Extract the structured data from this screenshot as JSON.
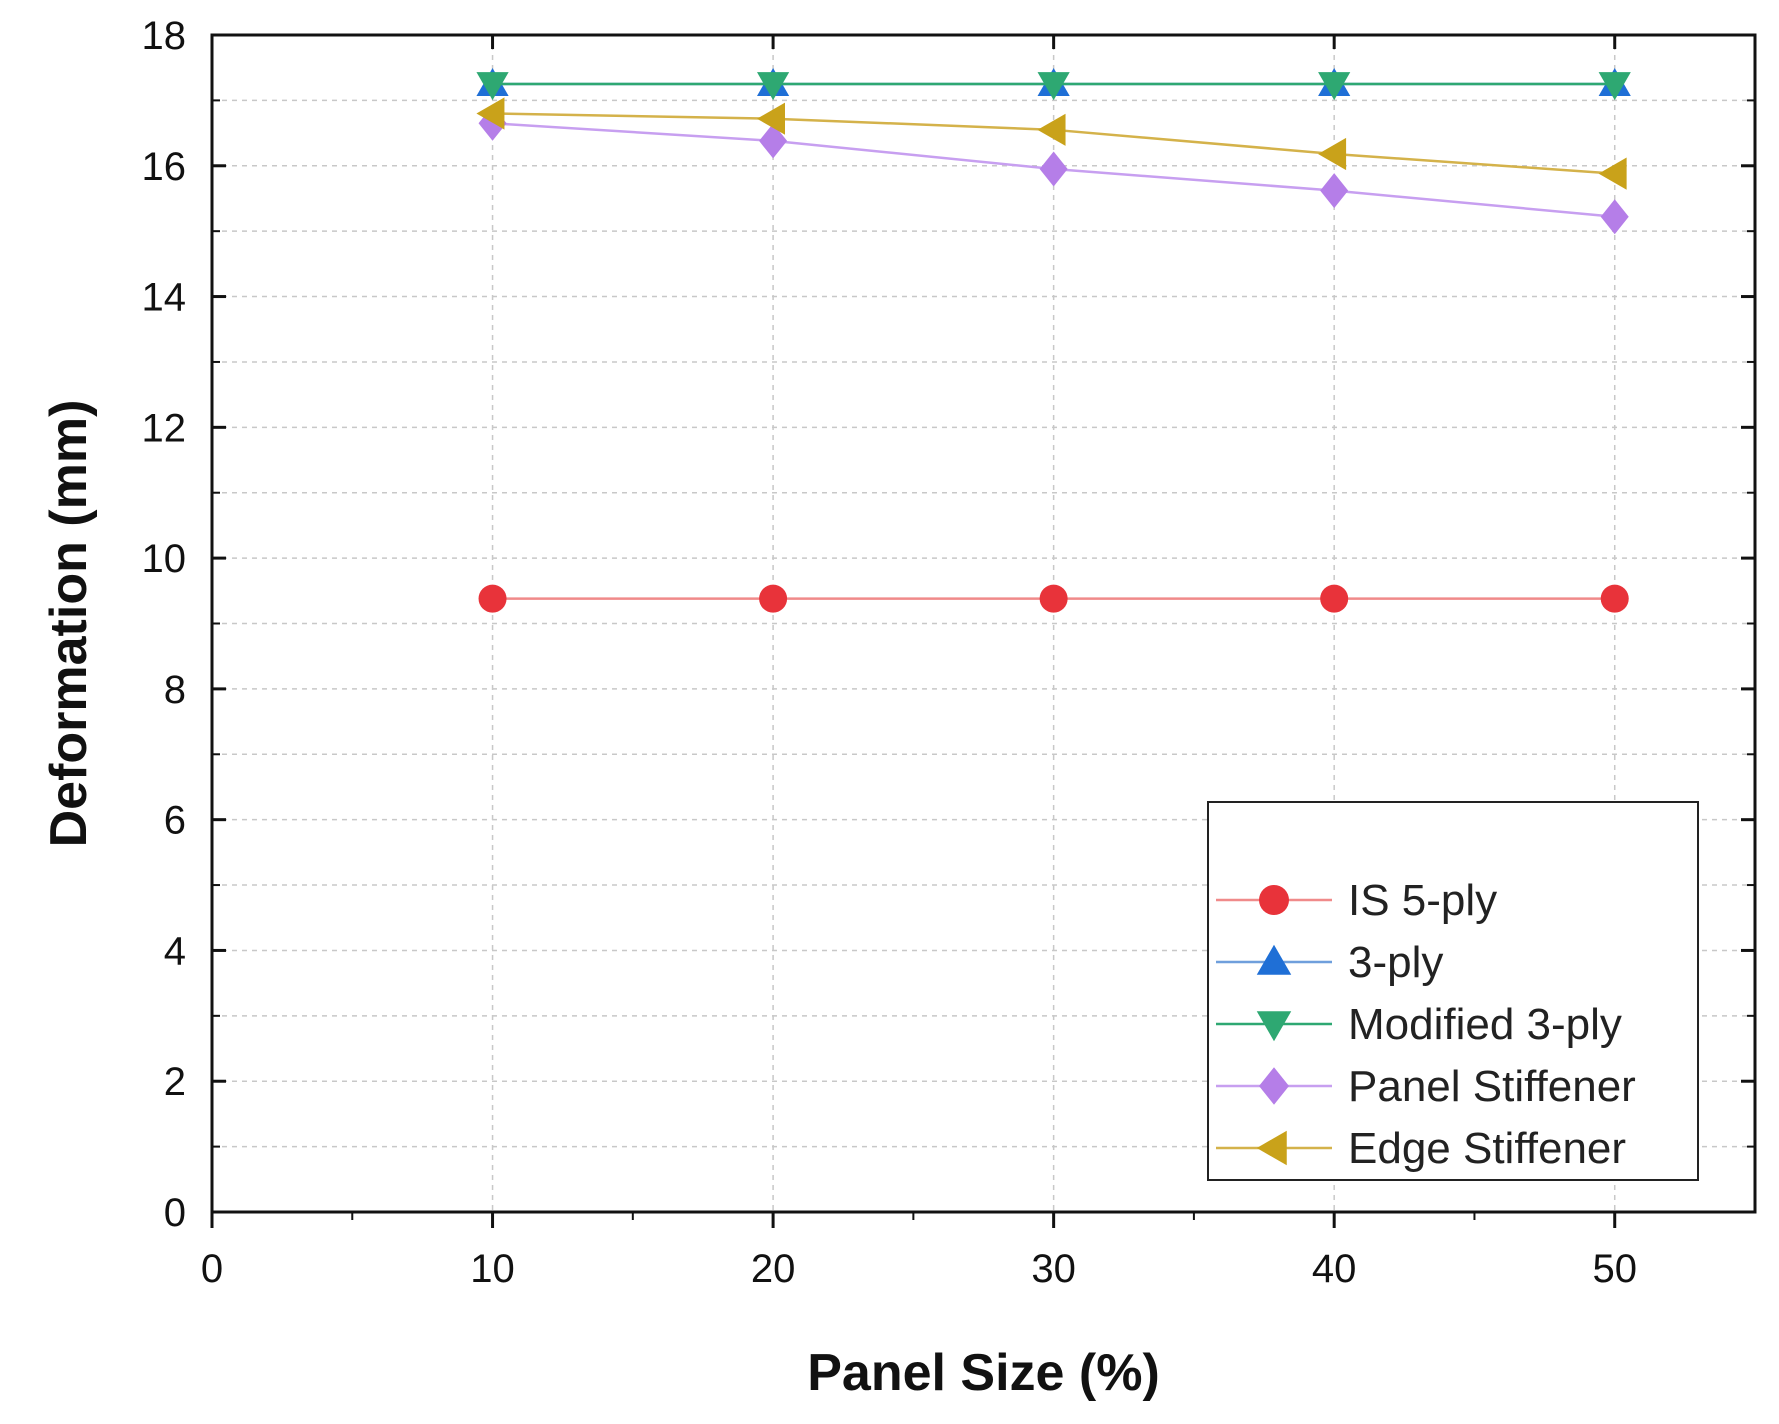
{
  "chart_data": {
    "type": "line",
    "xlabel": "Panel Size (%)",
    "ylabel": "Deformation (mm)",
    "xlim": [
      0,
      55
    ],
    "ylim": [
      0,
      18
    ],
    "x_ticks": [
      "0",
      "10",
      "20",
      "30",
      "40",
      "50"
    ],
    "y_ticks": [
      "0",
      "2",
      "4",
      "6",
      "8",
      "10",
      "12",
      "14",
      "16",
      "18"
    ],
    "grid": true,
    "legend_position": "bottom-right",
    "x": [
      10,
      20,
      30,
      40,
      50
    ],
    "series": [
      {
        "name": "IS 5-ply",
        "marker": "circle",
        "color": "#e8333a",
        "line_color": "#f08a8a",
        "values": [
          9.38,
          9.38,
          9.38,
          9.38,
          9.38
        ]
      },
      {
        "name": "3-ply",
        "marker": "triangle-up",
        "color": "#1f6fd6",
        "line_color": "#6f9fdc",
        "values": [
          17.25,
          17.25,
          17.25,
          17.25,
          17.25
        ]
      },
      {
        "name": "Modified 3-ply",
        "marker": "triangle-down",
        "color": "#2ea872",
        "line_color": "#2ea872",
        "values": [
          17.25,
          17.25,
          17.25,
          17.25,
          17.25
        ]
      },
      {
        "name": "Panel Stiffener",
        "marker": "diamond",
        "color": "#b57ee8",
        "line_color": "#c79ff0",
        "values": [
          16.65,
          16.38,
          15.95,
          15.62,
          15.22
        ]
      },
      {
        "name": "Edge Stiffener",
        "marker": "triangle-left",
        "color": "#c9a21a",
        "line_color": "#d4b24a",
        "values": [
          16.8,
          16.72,
          16.55,
          16.18,
          15.88
        ]
      }
    ]
  }
}
